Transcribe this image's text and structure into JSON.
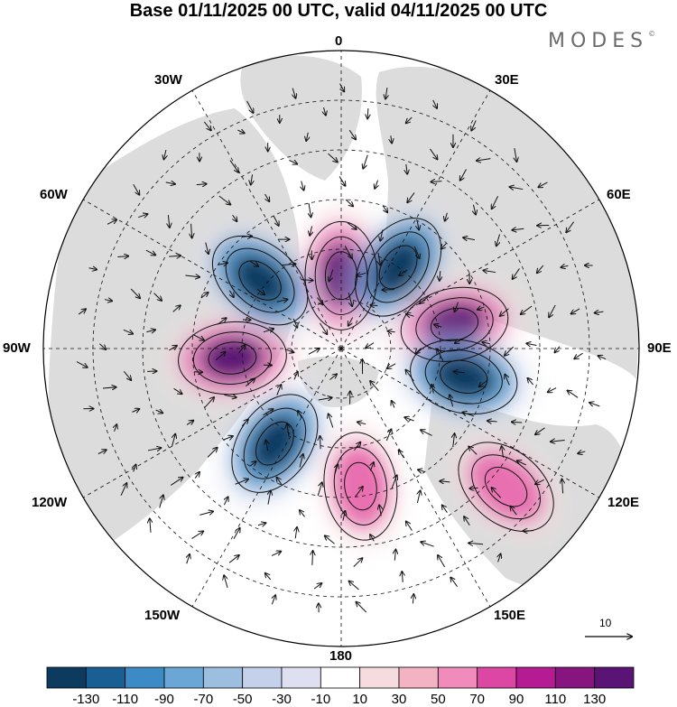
{
  "title": "Base 01/11/2025 00 UTC, valid 04/11/2025 00 UTC",
  "brand": "MODES",
  "brand_mark": "©",
  "longitude_labels": {
    "lon_0": "0",
    "lon_30e": "30E",
    "lon_60e": "60E",
    "lon_90e": "90E",
    "lon_120e": "120E",
    "lon_150e": "150E",
    "lon_180": "180",
    "lon_150w": "150W",
    "lon_120w": "120W",
    "lon_90w": "90W",
    "lon_60w": "60W",
    "lon_30w": "30W"
  },
  "reference_vector": "10",
  "colors": {
    "neg_strong": "#0d3b60",
    "neg_mid": "#3c8ac6",
    "neg_weak": "#dedff0",
    "pos_weak": "#f6dcdf",
    "pos_mid": "#e86fb0",
    "pos_strong": "#5a1475",
    "land": "#d9d9d9"
  },
  "colorbar": {
    "colors": [
      "#0d3b60",
      "#1a5f93",
      "#3c8ac6",
      "#6aa6d6",
      "#9cbfe0",
      "#c5d1ea",
      "#dedff0",
      "#ffffff",
      "#f6dcdf",
      "#f3b3c3",
      "#f08bbb",
      "#dc47a3",
      "#b51b93",
      "#861580",
      "#5a1475"
    ],
    "ticks": [
      "-130",
      "-110",
      "-90",
      "-70",
      "-50",
      "-30",
      "-10",
      "10",
      "30",
      "50",
      "70",
      "90",
      "110",
      "130"
    ]
  },
  "anomaly_centers": [
    {
      "name": "pos-0",
      "lon": 0,
      "lat": 68,
      "value": 120
    },
    {
      "name": "neg-30e",
      "lon": 35,
      "lat": 60,
      "value": -130
    },
    {
      "name": "pos-80e",
      "lon": 78,
      "lat": 55,
      "value": 130
    },
    {
      "name": "neg-100e",
      "lon": 103,
      "lat": 52,
      "value": -130
    },
    {
      "name": "pos-130e",
      "lon": 130,
      "lat": 25,
      "value": 50
    },
    {
      "name": "pos-170e",
      "lon": 172,
      "lat": 48,
      "value": 100
    },
    {
      "name": "neg-145w",
      "lon": -145,
      "lat": 55,
      "value": -130
    },
    {
      "name": "pos-95w",
      "lon": -95,
      "lat": 57,
      "value": 130
    },
    {
      "name": "neg-50w",
      "lon": -50,
      "lat": 58,
      "value": -130
    }
  ]
}
